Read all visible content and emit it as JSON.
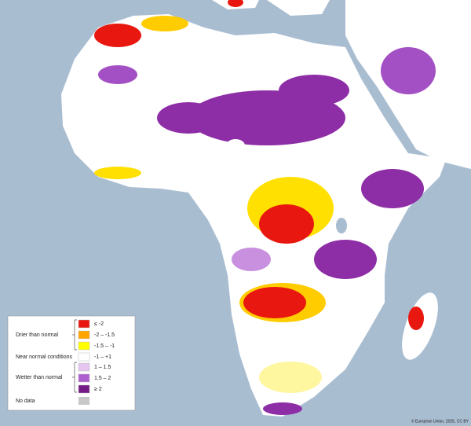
{
  "legend": {
    "drier": "Drier than normal",
    "near_normal": "Near normal conditions",
    "wetter": "Wetter than normal",
    "items": [
      {
        "label": "≤ -2",
        "color": "#e8170f"
      },
      {
        "label": "-2 – -1.5",
        "color": "#ffa500"
      },
      {
        "label": "-1.5 – -1",
        "color": "#ffff00"
      },
      {
        "label": "-1 – +1",
        "color": "#ffffff"
      },
      {
        "label": "1 – 1.5",
        "color": "#e4c6f0"
      },
      {
        "label": "1.5 – 2",
        "color": "#ae5fcf"
      },
      {
        "label": "≥ 2",
        "color": "#761a88"
      }
    ],
    "no_data": {
      "label": "No data",
      "color": "#c8c8c8"
    }
  },
  "credit": "© European Union, 2025, CC BY"
}
